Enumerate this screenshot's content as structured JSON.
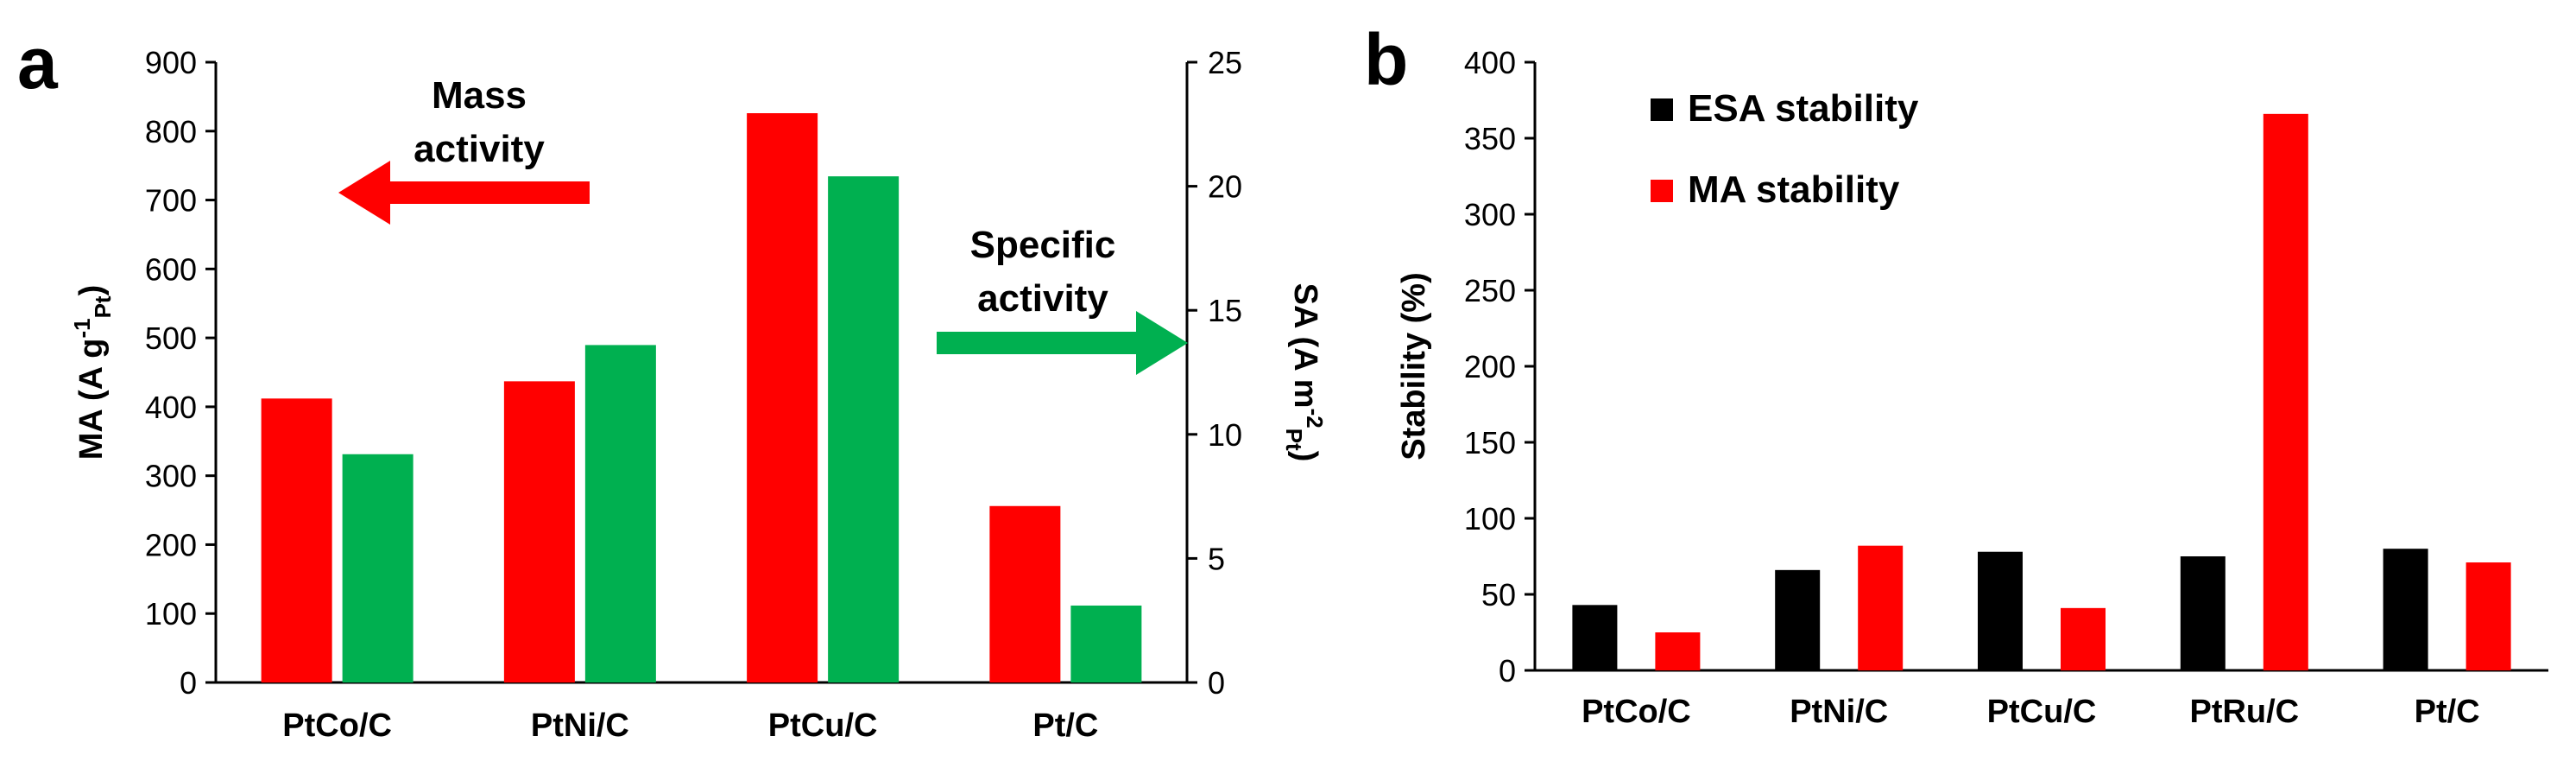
{
  "chart_data": [
    {
      "panel": "a",
      "type": "bar",
      "categories": [
        "PtCo/C",
        "PtNi/C",
        "PtCu/C",
        "Pt/C"
      ],
      "series": [
        {
          "name": "Mass activity",
          "axis": "left",
          "color": "#ff0000",
          "values": [
            412,
            437,
            826,
            256
          ]
        },
        {
          "name": "Specific activity",
          "axis": "right",
          "color": "#00b050",
          "values": [
            9.2,
            13.6,
            20.4,
            3.1
          ]
        }
      ],
      "ylabel_left": {
        "main": "MA (A g",
        "sup": "-1",
        "sub": "Pt",
        "close": ")"
      },
      "ylabel_right": {
        "main": "SA (A m",
        "sup": "-2",
        "sub": "Pt",
        "close": ")"
      },
      "ylim_left": [
        0,
        900
      ],
      "ylim_right": [
        0,
        25
      ],
      "yticks_left": [
        0,
        100,
        200,
        300,
        400,
        500,
        600,
        700,
        800,
        900
      ],
      "yticks_right": [
        0,
        5,
        10,
        15,
        20,
        25
      ],
      "annotations": {
        "mass_line1": "Mass",
        "mass_line2": "activity",
        "specific_line1": "Specific",
        "specific_line2": "activity"
      }
    },
    {
      "panel": "b",
      "type": "bar",
      "categories": [
        "PtCo/C",
        "PtNi/C",
        "PtCu/C",
        "PtRu/C",
        "Pt/C"
      ],
      "series": [
        {
          "name": "ESA stability",
          "color": "#000000",
          "values": [
            43,
            66,
            78,
            75,
            80
          ]
        },
        {
          "name": "MA stability",
          "color": "#ff0000",
          "values": [
            25,
            82,
            41,
            366,
            71
          ]
        }
      ],
      "ylabel": "Stability (%)",
      "ylim": [
        0,
        400
      ],
      "yticks": [
        0,
        50,
        100,
        150,
        200,
        250,
        300,
        350,
        400
      ],
      "legend_position": "top-left"
    }
  ],
  "panel_labels": {
    "a": "a",
    "b": "b"
  }
}
